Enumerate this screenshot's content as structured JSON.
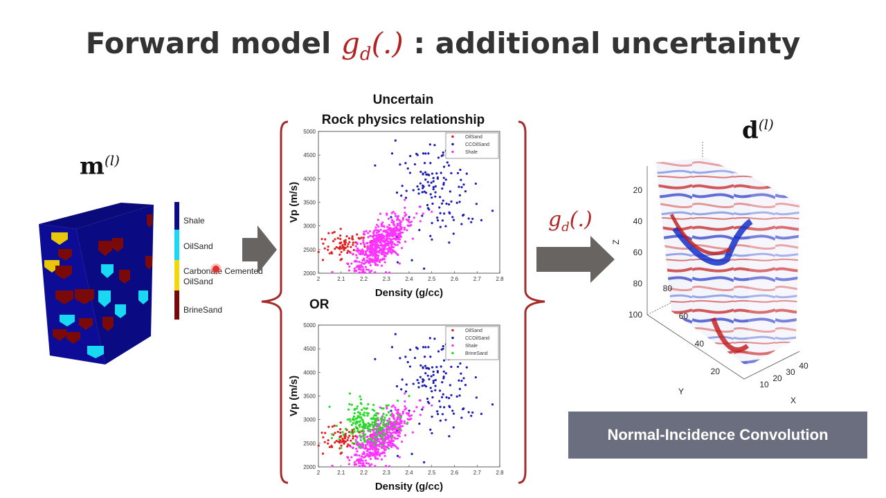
{
  "title": {
    "prefix": "Forward model ",
    "math": "g",
    "math_sub": "d",
    "math_suffix": "(.)",
    "suffix": " : additional uncertainty"
  },
  "model_label": {
    "base": "m",
    "sup": "(l)"
  },
  "data_label": {
    "base": "d",
    "sup": "(l)"
  },
  "operator_label": {
    "base": "g",
    "sub": "d",
    "args": "(.)"
  },
  "facies_legend": [
    {
      "label": "Shale",
      "color": "#0a0a8c"
    },
    {
      "label": "OilSand",
      "color": "#19d8f2"
    },
    {
      "label": "Carbonate Cemented OilSand",
      "color": "#f2d80a"
    },
    {
      "label": "BrineSand",
      "color": "#7a0a0a"
    }
  ],
  "rock_physics": {
    "line1": "Uncertain",
    "line2": "Rock physics relationship",
    "or_label": "OR"
  },
  "convolution_label": "Normal-Incidence Convolution",
  "colors": {
    "accent": "#b22222",
    "oilsand_pt": "#e02020",
    "ccoilsand_pt": "#1a1ab4",
    "shale_pt": "#ff33ff",
    "brinesand_pt": "#22dd22"
  },
  "chart_data": [
    {
      "type": "scatter",
      "title": "",
      "xlabel": "Density (g/cc)",
      "ylabel": "Vp (m/s)",
      "xlim": [
        2,
        2.8
      ],
      "ylim": [
        2000,
        5000
      ],
      "xticks": [
        "2",
        "2.1",
        "2.2",
        "2.3",
        "2.4",
        "2.5",
        "2.6",
        "2.7",
        "2.8"
      ],
      "yticks": [
        "2000",
        "2500",
        "3000",
        "3500",
        "4000",
        "4500",
        "5000"
      ],
      "legend_position": "top-right",
      "series": [
        {
          "name": "OilSand",
          "color": "#e02020",
          "center": [
            2.11,
            2600
          ],
          "spread": [
            0.05,
            160
          ],
          "count": 70,
          "x": [
            2.02,
            2.05,
            2.08,
            2.1,
            2.12,
            2.15,
            2.17,
            2.19
          ],
          "y": [
            2280,
            2420,
            2550,
            2650,
            2700,
            2780,
            2820,
            2750
          ]
        },
        {
          "name": "CCOilSand",
          "color": "#1a1ab4",
          "center": [
            2.52,
            3800
          ],
          "spread": [
            0.09,
            550
          ],
          "count": 130,
          "x": [
            2.25,
            2.36,
            2.45,
            2.5,
            2.55,
            2.6,
            2.65,
            2.68
          ],
          "y": [
            4280,
            4300,
            3900,
            3600,
            4500,
            4850,
            4700,
            3150
          ]
        },
        {
          "name": "Shale",
          "color": "#ff33ff",
          "center": [
            2.27,
            2600
          ],
          "spread": [
            0.06,
            220
          ],
          "count": 550,
          "x": [
            2.16,
            2.2,
            2.25,
            2.3,
            2.35,
            2.4,
            2.45,
            2.5
          ],
          "y": [
            2100,
            2200,
            2400,
            2600,
            2800,
            3000,
            3100,
            3300
          ]
        }
      ]
    },
    {
      "type": "scatter",
      "title": "",
      "xlabel": "Density (g/cc)",
      "ylabel": "Vp (m/s)",
      "xlim": [
        2,
        2.8
      ],
      "ylim": [
        2000,
        5000
      ],
      "xticks": [
        "2",
        "2.1",
        "2.2",
        "2.3",
        "2.4",
        "2.5",
        "2.6",
        "2.7",
        "2.8"
      ],
      "yticks": [
        "2000",
        "2500",
        "3000",
        "3500",
        "4000",
        "4500",
        "5000"
      ],
      "legend_position": "top-right",
      "series": [
        {
          "name": "OilSand",
          "color": "#e02020",
          "center": [
            2.11,
            2600
          ],
          "spread": [
            0.05,
            160
          ],
          "count": 70,
          "x": [
            2.02,
            2.05,
            2.08,
            2.1,
            2.12,
            2.15,
            2.17,
            2.19
          ],
          "y": [
            2280,
            2420,
            2550,
            2650,
            2700,
            2780,
            2820,
            2750
          ]
        },
        {
          "name": "CCOilSand",
          "color": "#1a1ab4",
          "center": [
            2.52,
            3800
          ],
          "spread": [
            0.09,
            550
          ],
          "count": 130,
          "x": [
            2.25,
            2.36,
            2.45,
            2.5,
            2.55,
            2.6,
            2.65,
            2.68
          ],
          "y": [
            4280,
            4300,
            3900,
            3600,
            4500,
            4850,
            4700,
            3150
          ]
        },
        {
          "name": "Shale",
          "color": "#ff33ff",
          "center": [
            2.27,
            2600
          ],
          "spread": [
            0.06,
            220
          ],
          "count": 550,
          "x": [
            2.16,
            2.2,
            2.25,
            2.3,
            2.35,
            2.4,
            2.45,
            2.5
          ],
          "y": [
            2100,
            2200,
            2400,
            2600,
            2800,
            3000,
            3100,
            3300
          ]
        },
        {
          "name": "BrineSand",
          "color": "#22dd22",
          "center": [
            2.22,
            2900
          ],
          "spread": [
            0.06,
            260
          ],
          "count": 180,
          "x": [
            2.1,
            2.15,
            2.2,
            2.25,
            2.3,
            2.35,
            2.4
          ],
          "y": [
            2400,
            2700,
            2900,
            3100,
            3300,
            3400,
            3500
          ]
        }
      ]
    }
  ],
  "cube_axes": {
    "z_label": "Z",
    "y_label": "Y",
    "x_label": "X",
    "z_ticks": [
      "20",
      "40",
      "60",
      "80",
      "100"
    ],
    "y_ticks": [
      "20",
      "40",
      "60",
      "80"
    ],
    "x_ticks": [
      "10",
      "20",
      "30",
      "40"
    ]
  }
}
